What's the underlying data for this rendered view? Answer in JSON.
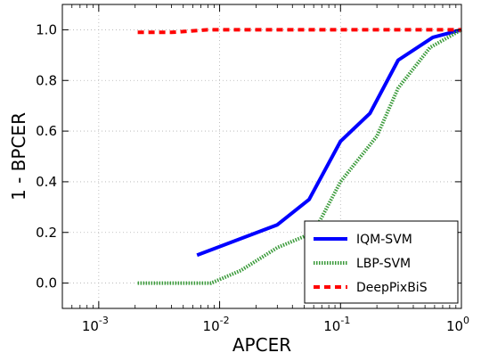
{
  "chart_data": {
    "type": "line",
    "xlabel": "APCER",
    "ylabel": "1 - BPCER",
    "xscale": "log",
    "xlim": [
      0.0005,
      1
    ],
    "ylim": [
      -0.1,
      1.1
    ],
    "grid": true,
    "legend_position": "bottom-right",
    "x_ticks": [
      {
        "base": "10",
        "exp": "-3",
        "value": 0.001
      },
      {
        "base": "10",
        "exp": "-2",
        "value": 0.01
      },
      {
        "base": "10",
        "exp": "-1",
        "value": 0.1
      },
      {
        "base": "10",
        "exp": "0",
        "value": 1
      }
    ],
    "y_ticks": [
      "0.0",
      "0.2",
      "0.4",
      "0.6",
      "0.8",
      "1.0"
    ],
    "series": [
      {
        "name": "IQM-SVM",
        "color": "#0000ff",
        "style": "solid",
        "points": [
          [
            0.0065,
            0.11
          ],
          [
            0.03,
            0.23
          ],
          [
            0.055,
            0.33
          ],
          [
            0.1,
            0.56
          ],
          [
            0.175,
            0.67
          ],
          [
            0.3,
            0.88
          ],
          [
            0.58,
            0.97
          ],
          [
            1.0,
            1.0
          ]
        ]
      },
      {
        "name": "LBP-SVM",
        "color": "#3a9a3a",
        "style": "dotted",
        "points": [
          [
            0.0021,
            0.0
          ],
          [
            0.0085,
            0.0
          ],
          [
            0.015,
            0.05
          ],
          [
            0.03,
            0.14
          ],
          [
            0.06,
            0.2
          ],
          [
            0.1,
            0.4
          ],
          [
            0.2,
            0.58
          ],
          [
            0.3,
            0.77
          ],
          [
            0.55,
            0.93
          ],
          [
            1.0,
            1.0
          ]
        ]
      },
      {
        "name": "DeepPixBiS",
        "color": "#ff0000",
        "style": "dashed",
        "points": [
          [
            0.0021,
            0.99
          ],
          [
            0.004,
            0.99
          ],
          [
            0.008,
            1.0
          ],
          [
            1.0,
            1.0
          ]
        ]
      }
    ]
  }
}
